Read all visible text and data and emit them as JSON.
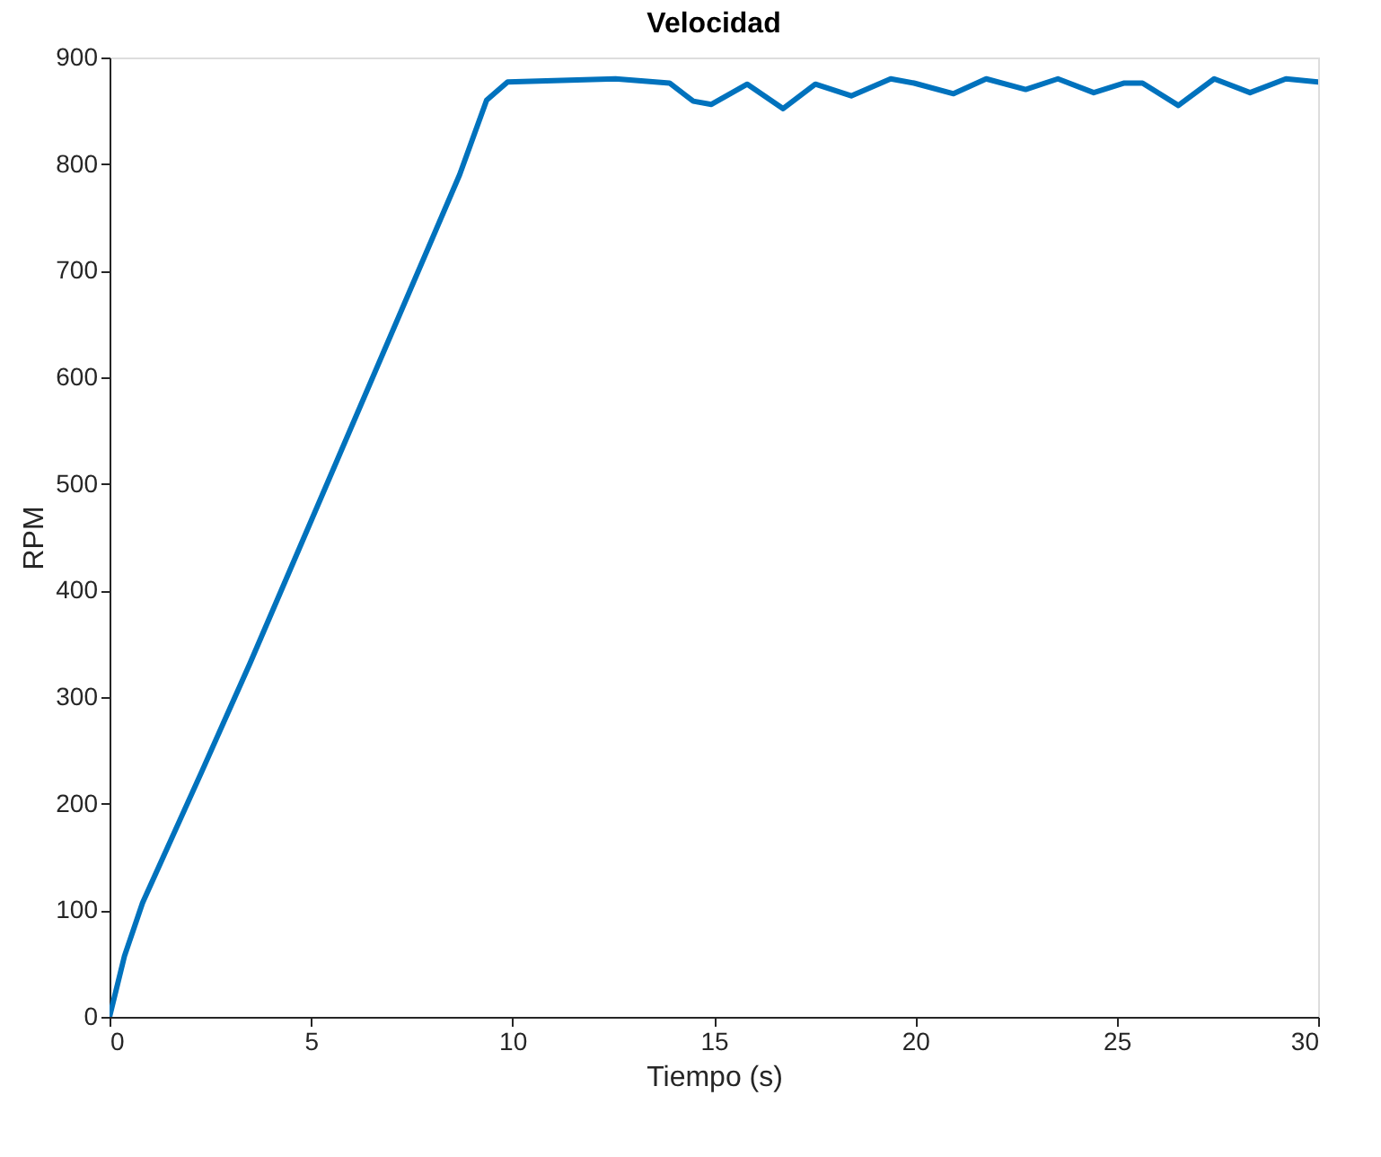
{
  "chart_data": {
    "type": "line",
    "title": "Velocidad",
    "xlabel": "Tiempo (s)",
    "ylabel": "RPM",
    "xlim": [
      0,
      30
    ],
    "ylim": [
      0,
      900
    ],
    "xticks": [
      0,
      5,
      10,
      15,
      20,
      25,
      30
    ],
    "yticks": [
      0,
      100,
      200,
      300,
      400,
      500,
      600,
      700,
      800,
      900
    ],
    "grid": false,
    "legend": false,
    "line_style": "solid",
    "marker": "none",
    "series": [
      {
        "color": "#0072bd",
        "x": [
          0,
          0.37,
          0.82,
          2.3,
          3.49,
          8.69,
          9.36,
          9.88,
          12.56,
          13.9,
          14.49,
          14.94,
          15.83,
          16.72,
          17.52,
          18.41,
          19.39,
          19.97,
          20.95,
          21.76,
          22.74,
          23.54,
          24.43,
          25.19,
          25.64,
          26.53,
          27.42,
          28.31,
          29.2,
          30
        ],
        "values": [
          0,
          57,
          107,
          231,
          332,
          790,
          860,
          877,
          880,
          876,
          859,
          856,
          875,
          852,
          875,
          864,
          880,
          876,
          866,
          880,
          870,
          880,
          867,
          876,
          876,
          855,
          880,
          867,
          880,
          877
        ]
      }
    ]
  }
}
